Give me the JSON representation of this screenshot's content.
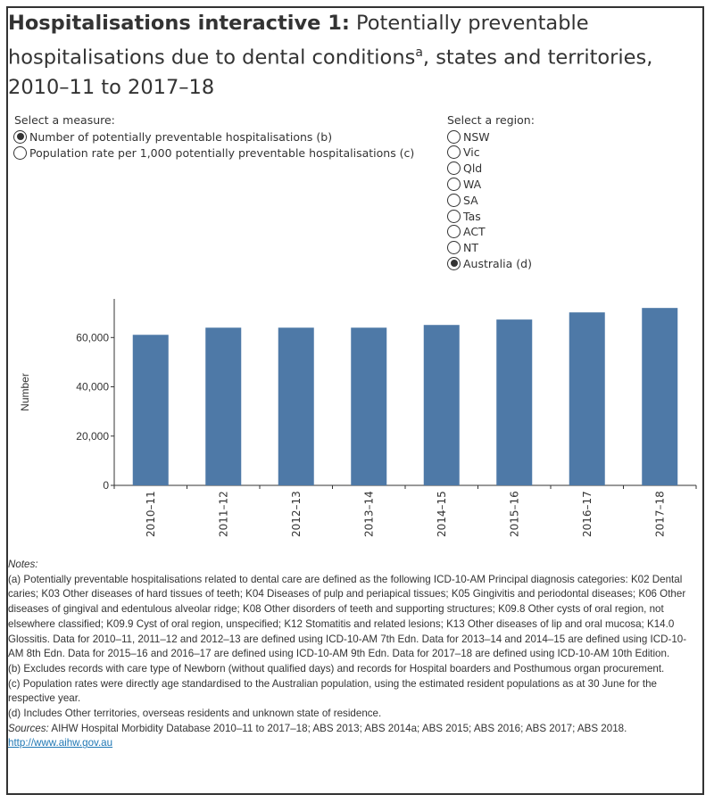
{
  "title": {
    "bold": "Hospitalisations interactive 1:",
    "rest": " Potentially preventable hospitalisations due to dental conditions",
    "sup": "a",
    "rest2": ", states and territories, 2010–11 to 2017–18"
  },
  "measure": {
    "label": "Select a measure:",
    "options": [
      {
        "label": "Number of potentially preventable hospitalisations (b)",
        "selected": true
      },
      {
        "label": "Population rate per 1,000 potentially preventable hospitalisations (c)",
        "selected": false
      }
    ]
  },
  "region": {
    "label": "Select a region:",
    "options": [
      {
        "label": "NSW",
        "selected": false
      },
      {
        "label": "Vic",
        "selected": false
      },
      {
        "label": "Qld",
        "selected": false
      },
      {
        "label": "WA",
        "selected": false
      },
      {
        "label": "SA",
        "selected": false
      },
      {
        "label": "Tas",
        "selected": false
      },
      {
        "label": "ACT",
        "selected": false
      },
      {
        "label": "NT",
        "selected": false
      },
      {
        "label": "Australia (d)",
        "selected": true
      }
    ]
  },
  "chart_data": {
    "type": "bar",
    "categories": [
      "2010–11",
      "2011–12",
      "2012–13",
      "2013–14",
      "2014–15",
      "2015–16",
      "2016–17",
      "2017–18"
    ],
    "values": [
      61100,
      64000,
      64000,
      64000,
      65100,
      67300,
      70200,
      72000
    ],
    "xlabel": "",
    "ylabel": "Number",
    "ylim": [
      0,
      75000
    ],
    "yticks": [
      0,
      20000,
      40000,
      60000
    ],
    "ytick_labels": [
      "0",
      "20,000",
      "40,000",
      "60,000"
    ],
    "grid": false,
    "color": "#4e79a7"
  },
  "notes": {
    "heading": "Notes:",
    "a": "(a) Potentially preventable hospitalisations related to dental care are defined as the following ICD-10-AM Principal diagnosis categories: K02 Dental caries; K03 Other diseases of hard tissues of teeth; K04 Diseases of pulp and periapical tissues; K05 Gingivitis and periodontal diseases; K06 Other diseases of gingival and edentulous alveolar ridge; K08 Other disorders of teeth and supporting structures; K09.8 Other cysts of oral region, not elsewhere classified; K09.9 Cyst of oral region, unspecified; K12 Stomatitis and related lesions; K13 Other diseases of lip and oral mucosa; K14.0 Glossitis. Data for 2010–11, 2011–12 and 2012–13 are defined using ICD-10-AM 7th Edn. Data for 2013–14 and 2014–15 are defined using ICD-10-AM 8th Edn. Data for 2015–16 and 2016–17 are defined using ICD-10-AM 9th Edn. Data for 2017–18 are defined using ICD-10-AM 10th Edition.",
    "b": "(b) Excludes records with care type of Newborn (without qualified days) and records for Hospital boarders and Posthumous organ procurement.",
    "c": "(c) Population rates were directly age standardised to the Australian population, using the estimated resident populations as at 30 June for the respective year.",
    "d": "(d) Includes Other territories, overseas residents and unknown state of residence.",
    "sources_label": "Sources:",
    "sources": " AIHW Hospital Morbidity Database 2010–11 to 2017–18; ABS 2013; ABS 2014a; ABS 2015; ABS 2016; ABS 2017; ABS 2018.",
    "link": "http://www.aihw.gov.au"
  }
}
